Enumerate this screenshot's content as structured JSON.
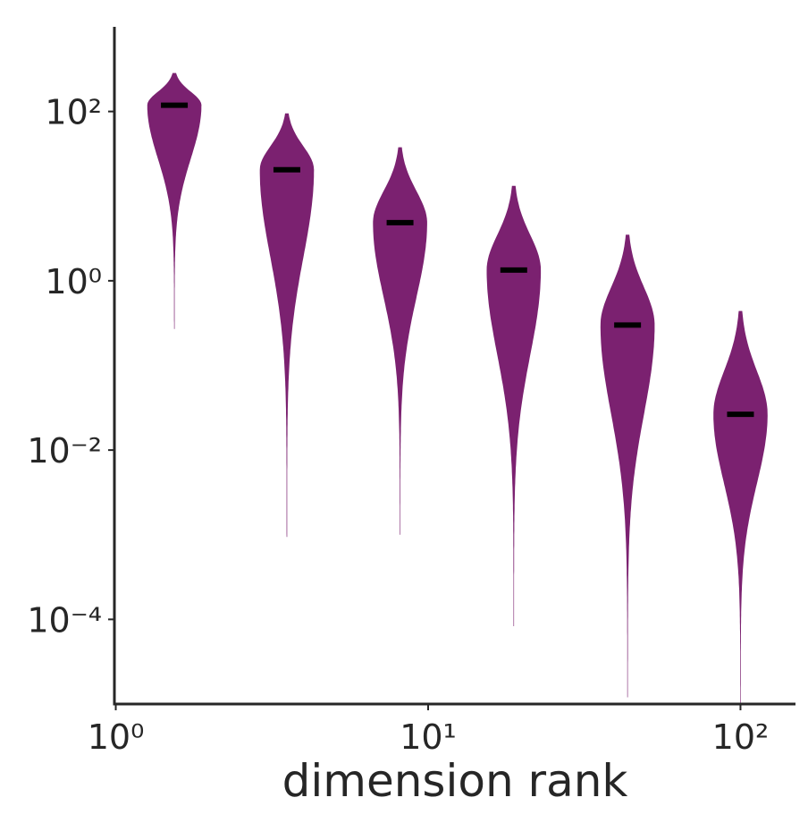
{
  "chart_data": {
    "type": "violin",
    "xlabel": "dimension rank",
    "xscale": "log",
    "yscale": "log",
    "xlim": [
      0.99,
      150
    ],
    "ylim": [
      1e-05,
      1000
    ],
    "xticks": [
      {
        "value": 1,
        "label": "10⁰"
      },
      {
        "value": 10,
        "label": "10¹"
      },
      {
        "value": 100,
        "label": "10²"
      }
    ],
    "yticks": [
      {
        "value": 0.0001,
        "label": "10⁻⁴"
      },
      {
        "value": 0.01,
        "label": "10⁻²"
      },
      {
        "value": 1,
        "label": "10⁰"
      },
      {
        "value": 100,
        "label": "10²"
      }
    ],
    "color": "#7b2170",
    "median_color": "#000000",
    "violins": [
      {
        "x": 1.54,
        "min": 0.27,
        "median": 118.6,
        "max": 285
      },
      {
        "x": 3.53,
        "min": 0.00094,
        "median": 20.5,
        "max": 95
      },
      {
        "x": 8.13,
        "min": 0.001,
        "median": 4.87,
        "max": 37.8
      },
      {
        "x": 18.8,
        "min": 8.3e-05,
        "median": 1.34,
        "max": 13.2
      },
      {
        "x": 43.5,
        "min": 1.2e-05,
        "median": 0.3,
        "max": 3.5
      },
      {
        "x": 100,
        "min": 1e-05,
        "median": 0.0265,
        "max": 0.44
      }
    ]
  }
}
